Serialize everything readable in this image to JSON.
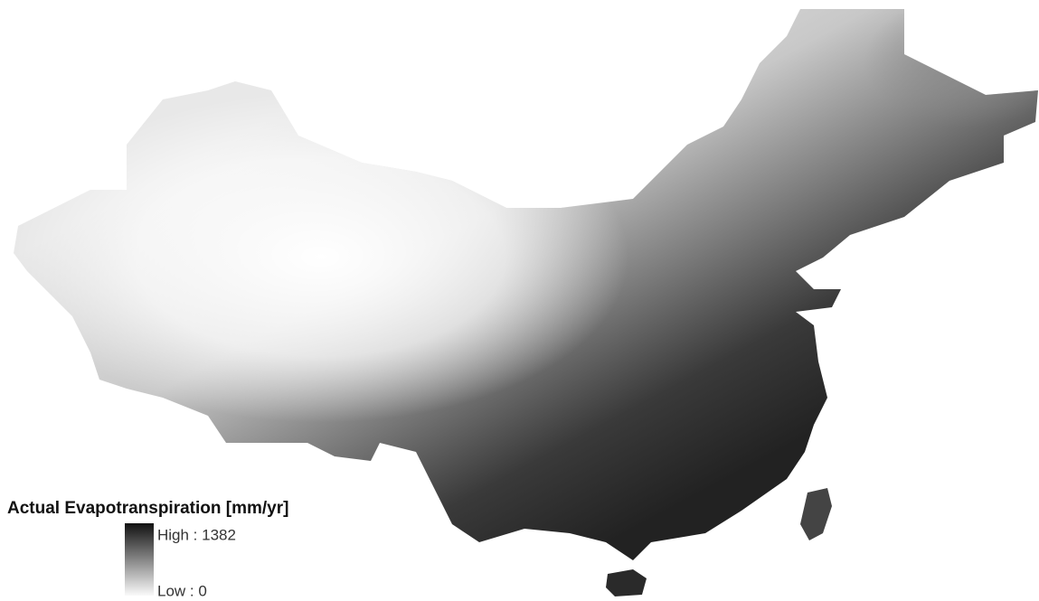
{
  "legend": {
    "title": "Actual Evapotranspiration [mm/yr]",
    "high": "High : 1382",
    "low": "Low : 0"
  }
}
